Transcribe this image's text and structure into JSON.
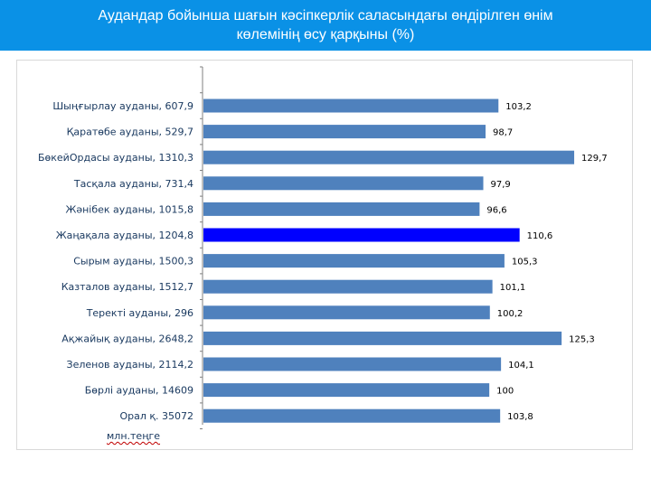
{
  "title": {
    "line1": "Аудандар бойынша шағын кәсіпкерлік саласындағы өндірілген өнім",
    "line2": "көлемінің өсу қарқыны  (%)"
  },
  "unit_label": "млн.теңге",
  "colors": {
    "header_bg": "#0a91e6",
    "bar": "#4f81bd",
    "highlight_bar": "#0000ff",
    "highlight_label": "#0000cc",
    "category_text": "#17375e",
    "axis": "#7f7f7f"
  },
  "chart_data": {
    "type": "bar",
    "orientation": "horizontal",
    "title": "Аудандар бойынша шағын кәсіпкерлік саласындағы өндірілген өнім көлемінің өсу қарқыны  (%)",
    "categories": [
      "Шыңғырлау ауданы,  607,9",
      "Қаратөбе ауданы,  529,7",
      "БөкейОрдасы ауданы,  1310,3",
      "Тасқала ауданы,  731,4",
      "Жәнібек ауданы,  1015,8",
      "Жаңақала ауданы,  1204,8",
      "Сырым ауданы,  1500,3",
      "Казталов ауданы,  1512,7",
      "Теректі ауданы,  296",
      "Ақжайық ауданы,  2648,2",
      "Зеленов ауданы,  2114,2",
      "Бөрлі ауданы,  14609",
      "Орал қ. 35072"
    ],
    "values": [
      103.2,
      98.7,
      129.7,
      97.9,
      96.6,
      110.6,
      105.3,
      101.1,
      100.2,
      125.3,
      104.1,
      100,
      103.8
    ],
    "value_labels": [
      "103,2",
      "98,7",
      "129,7",
      "97,9",
      "96,6",
      "110,6",
      "105,3",
      "101,1",
      "100,2",
      "125,3",
      "104,1",
      "100",
      "103,8"
    ],
    "highlight_index": 5,
    "xlim": [
      0,
      130
    ],
    "grid": false,
    "legend": "none",
    "xlabel": "",
    "ylabel": ""
  }
}
